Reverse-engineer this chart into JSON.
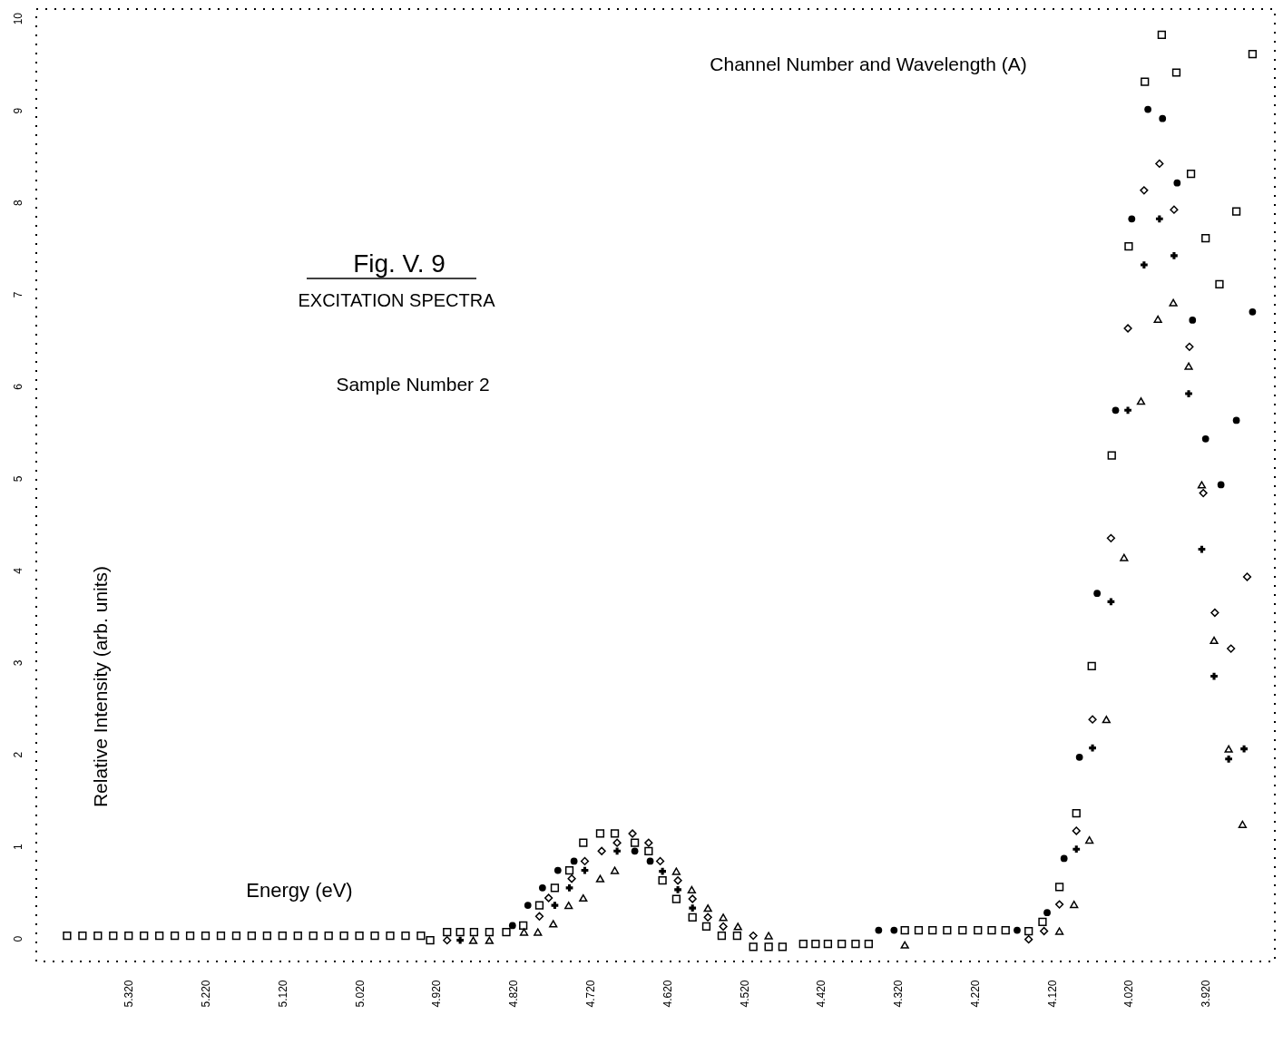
{
  "chart_data": {
    "type": "scatter",
    "title": "Fig.  V. 9",
    "subtitle": "EXCITATION SPECTRA",
    "xlabel": "Energy (eV)",
    "ylabel": "Relative Intensity (arb. units)",
    "annotations": [
      "Channel Number and Wavelength (A)",
      "Sample Number  2"
    ],
    "xlim": [
      5.44,
      3.83
    ],
    "ylim": [
      -0.25,
      10.1
    ],
    "xticks": [
      {
        "value": 5.32,
        "label": "5.320"
      },
      {
        "value": 5.22,
        "label": "5.220"
      },
      {
        "value": 5.12,
        "label": "5.120"
      },
      {
        "value": 5.02,
        "label": "5.020"
      },
      {
        "value": 4.92,
        "label": "4.920"
      },
      {
        "value": 4.82,
        "label": "4.820"
      },
      {
        "value": 4.72,
        "label": "4.720"
      },
      {
        "value": 4.62,
        "label": "4.620"
      },
      {
        "value": 4.52,
        "label": "4.520"
      },
      {
        "value": 4.42,
        "label": "4.420"
      },
      {
        "value": 4.32,
        "label": "4.320"
      },
      {
        "value": 4.22,
        "label": "4.220"
      },
      {
        "value": 4.12,
        "label": "4.120"
      },
      {
        "value": 4.02,
        "label": "4.020"
      },
      {
        "value": 3.92,
        "label": "3.920"
      }
    ],
    "yticks": [
      0,
      1,
      2,
      3,
      4,
      5,
      6,
      7,
      8,
      9,
      10
    ],
    "grid": false,
    "series": [
      {
        "color": "#000000",
        "marker": "square",
        "x": [
          5.4,
          5.38,
          5.36,
          5.34,
          5.32,
          5.3,
          5.28,
          5.26,
          5.24,
          5.22,
          5.2,
          5.18,
          5.16,
          5.14,
          5.12,
          5.1,
          5.08,
          5.06,
          5.04,
          5.02,
          5.0,
          4.98,
          4.96,
          4.94,
          4.928,
          4.906,
          4.889,
          4.871,
          4.851,
          4.829,
          4.807,
          4.786,
          4.766,
          4.747,
          4.729,
          4.707,
          4.688,
          4.662,
          4.644,
          4.626,
          4.608,
          4.587,
          4.569,
          4.549,
          4.529,
          4.508,
          4.488,
          4.47,
          4.443,
          4.427,
          4.411,
          4.393,
          4.375,
          4.358,
          4.311,
          4.293,
          4.275,
          4.256,
          4.236,
          4.216,
          4.198,
          4.18,
          4.15,
          4.132,
          4.11,
          4.088,
          4.068,
          4.042,
          4.02,
          3.999,
          3.977,
          3.958,
          3.939,
          3.92,
          3.902,
          3.88,
          3.859
        ],
        "values": [
          0.03,
          0.03,
          0.03,
          0.03,
          0.03,
          0.03,
          0.03,
          0.03,
          0.03,
          0.03,
          0.03,
          0.03,
          0.03,
          0.03,
          0.03,
          0.03,
          0.03,
          0.03,
          0.03,
          0.03,
          0.03,
          0.03,
          0.03,
          0.03,
          -0.02,
          0.07,
          0.07,
          0.07,
          0.07,
          0.07,
          0.14,
          0.36,
          0.55,
          0.74,
          1.04,
          1.14,
          1.14,
          1.04,
          0.95,
          0.63,
          0.43,
          0.23,
          0.13,
          0.03,
          0.03,
          -0.09,
          -0.09,
          -0.09,
          -0.06,
          -0.06,
          -0.06,
          -0.06,
          -0.06,
          -0.06,
          0.09,
          0.09,
          0.09,
          0.09,
          0.09,
          0.09,
          0.09,
          0.09,
          0.08,
          0.18,
          0.56,
          1.36,
          2.96,
          5.25,
          7.52,
          9.31,
          9.82,
          9.41,
          8.31,
          7.61,
          7.11,
          7.9,
          9.61
        ]
      },
      {
        "color": "#000000",
        "marker": "diamond",
        "x": [
          4.906,
          4.786,
          4.774,
          4.744,
          4.727,
          4.705,
          4.685,
          4.665,
          4.644,
          4.629,
          4.606,
          4.587,
          4.567,
          4.547,
          4.508,
          4.15,
          4.13,
          4.11,
          4.088,
          4.067,
          4.043,
          4.021,
          4.0,
          3.98,
          3.961,
          3.941,
          3.923,
          3.908,
          3.887,
          3.866
        ],
        "values": [
          -0.02,
          0.24,
          0.44,
          0.65,
          0.84,
          0.95,
          1.04,
          1.14,
          1.04,
          0.84,
          0.63,
          0.43,
          0.23,
          0.13,
          0.03,
          -0.01,
          0.08,
          0.37,
          1.17,
          2.38,
          4.35,
          6.63,
          8.13,
          8.42,
          7.92,
          6.43,
          4.84,
          3.54,
          3.15,
          3.93
        ]
      },
      {
        "color": "#000000",
        "marker": "cross",
        "x": [
          4.889,
          4.766,
          4.747,
          4.727,
          4.685,
          4.626,
          4.606,
          4.587,
          4.088,
          4.067,
          4.043,
          4.021,
          4.0,
          3.98,
          3.961,
          3.942,
          3.925,
          3.909,
          3.89,
          3.87
        ],
        "values": [
          -0.02,
          0.36,
          0.55,
          0.74,
          0.95,
          0.73,
          0.53,
          0.33,
          0.97,
          2.07,
          3.66,
          5.74,
          7.32,
          7.82,
          7.42,
          5.92,
          4.23,
          2.85,
          1.95,
          2.06
        ]
      },
      {
        "color": "#000000",
        "marker": "triangle",
        "x": [
          4.872,
          4.851,
          4.806,
          4.788,
          4.768,
          4.748,
          4.729,
          4.707,
          4.688,
          4.608,
          4.588,
          4.567,
          4.547,
          4.528,
          4.488,
          4.311,
          4.11,
          4.091,
          4.071,
          4.049,
          4.026,
          4.004,
          3.982,
          3.962,
          3.942,
          3.925,
          3.909,
          3.89,
          3.872
        ],
        "values": [
          -0.02,
          -0.02,
          0.07,
          0.07,
          0.16,
          0.36,
          0.44,
          0.65,
          0.74,
          0.73,
          0.53,
          0.33,
          0.23,
          0.13,
          0.03,
          -0.07,
          0.08,
          0.37,
          1.07,
          2.38,
          4.14,
          5.84,
          6.73,
          6.91,
          6.22,
          4.93,
          3.24,
          2.06,
          1.24
        ]
      },
      {
        "color": "#000000",
        "marker": "circle",
        "x": [
          4.821,
          4.801,
          4.782,
          4.762,
          4.741,
          4.662,
          4.642,
          4.345,
          4.325,
          4.165,
          4.126,
          4.104,
          4.084,
          4.061,
          4.037,
          4.016,
          3.995,
          3.976,
          3.957,
          3.937,
          3.92,
          3.9,
          3.88,
          3.859
        ],
        "values": [
          0.14,
          0.36,
          0.55,
          0.74,
          0.84,
          0.95,
          0.84,
          0.09,
          0.09,
          0.09,
          0.28,
          0.87,
          1.97,
          3.75,
          5.74,
          7.82,
          9.01,
          8.91,
          8.21,
          6.72,
          5.43,
          4.93,
          5.63,
          6.81
        ]
      }
    ]
  }
}
